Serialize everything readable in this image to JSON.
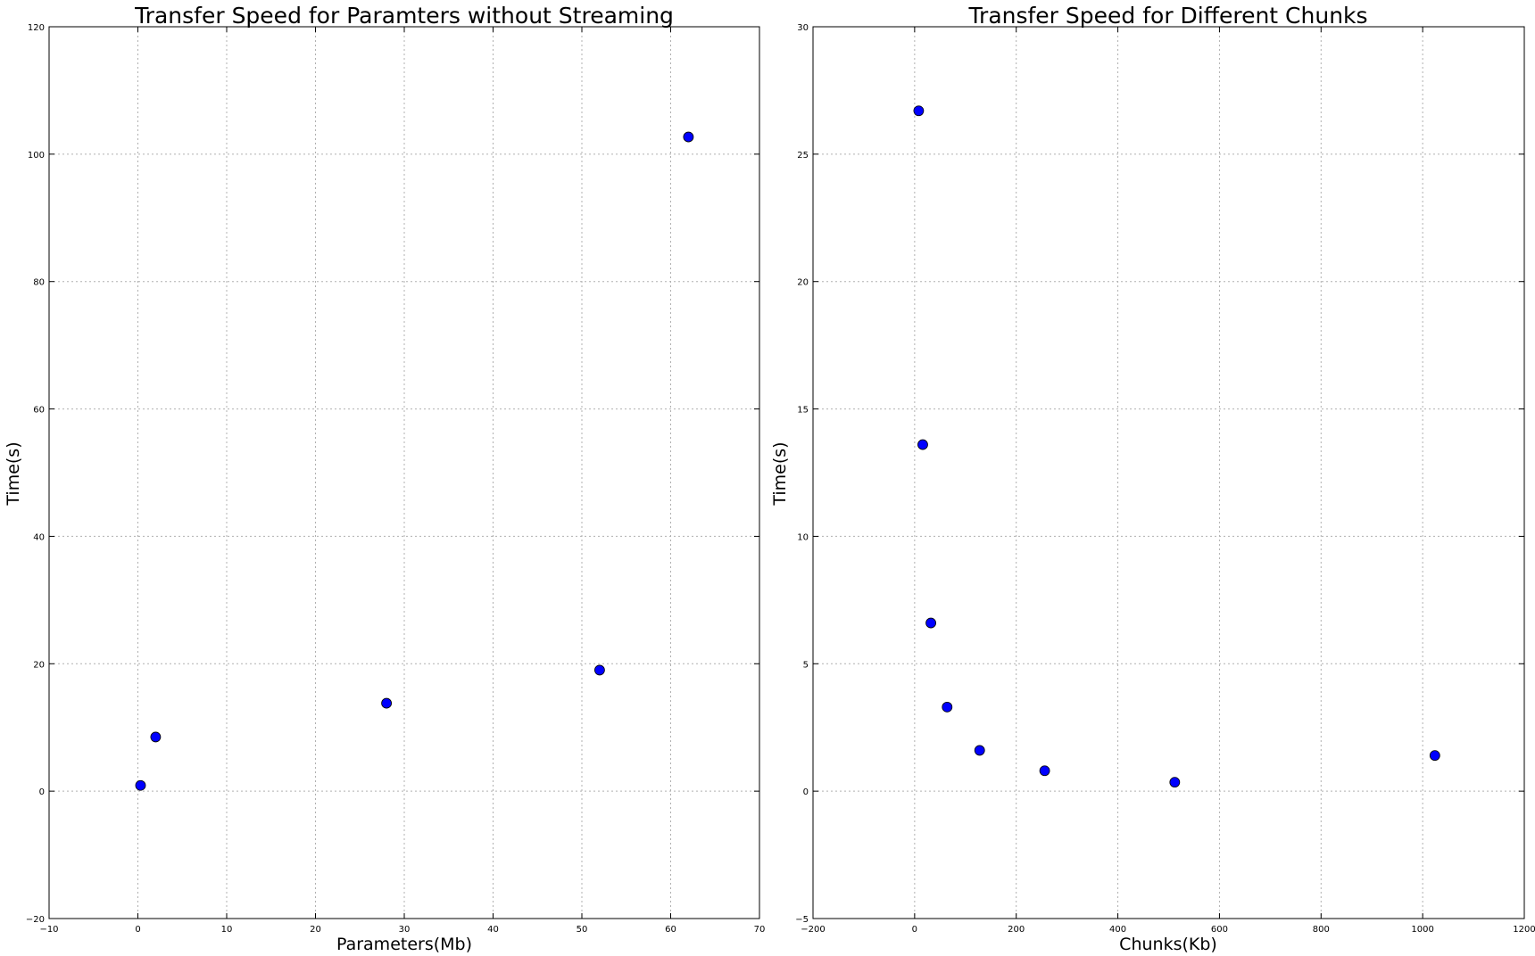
{
  "chart_data": [
    {
      "type": "scatter",
      "title": "Transfer Speed for Paramters without Streaming",
      "xlabel": "Parameters(Mb)",
      "ylabel": "Time(s)",
      "xlim": [
        -10,
        70
      ],
      "ylim": [
        -20,
        120
      ],
      "xticks": [
        -10,
        0,
        10,
        20,
        30,
        40,
        50,
        60,
        70
      ],
      "yticks": [
        -20,
        0,
        20,
        40,
        60,
        80,
        100,
        120
      ],
      "grid": true,
      "marker_color": "#0000ff",
      "points": [
        {
          "x": 0.3,
          "y": 0.9
        },
        {
          "x": 2,
          "y": 8.5
        },
        {
          "x": 28,
          "y": 13.8
        },
        {
          "x": 52,
          "y": 19
        },
        {
          "x": 62,
          "y": 102.7
        }
      ]
    },
    {
      "type": "scatter",
      "title": "Transfer Speed for Different Chunks",
      "xlabel": "Chunks(Kb)",
      "ylabel": "Time(s)",
      "xlim": [
        -200,
        1200
      ],
      "ylim": [
        -5,
        30
      ],
      "xticks": [
        -200,
        0,
        200,
        400,
        600,
        800,
        1000,
        1200
      ],
      "yticks": [
        -5,
        0,
        5,
        10,
        15,
        20,
        25,
        30
      ],
      "grid": true,
      "marker_color": "#0000ff",
      "points": [
        {
          "x": 8,
          "y": 26.7
        },
        {
          "x": 16,
          "y": 13.6
        },
        {
          "x": 32,
          "y": 6.6
        },
        {
          "x": 64,
          "y": 3.3
        },
        {
          "x": 128,
          "y": 1.6
        },
        {
          "x": 256,
          "y": 0.8
        },
        {
          "x": 512,
          "y": 0.35
        },
        {
          "x": 1024,
          "y": 1.4
        }
      ]
    }
  ]
}
